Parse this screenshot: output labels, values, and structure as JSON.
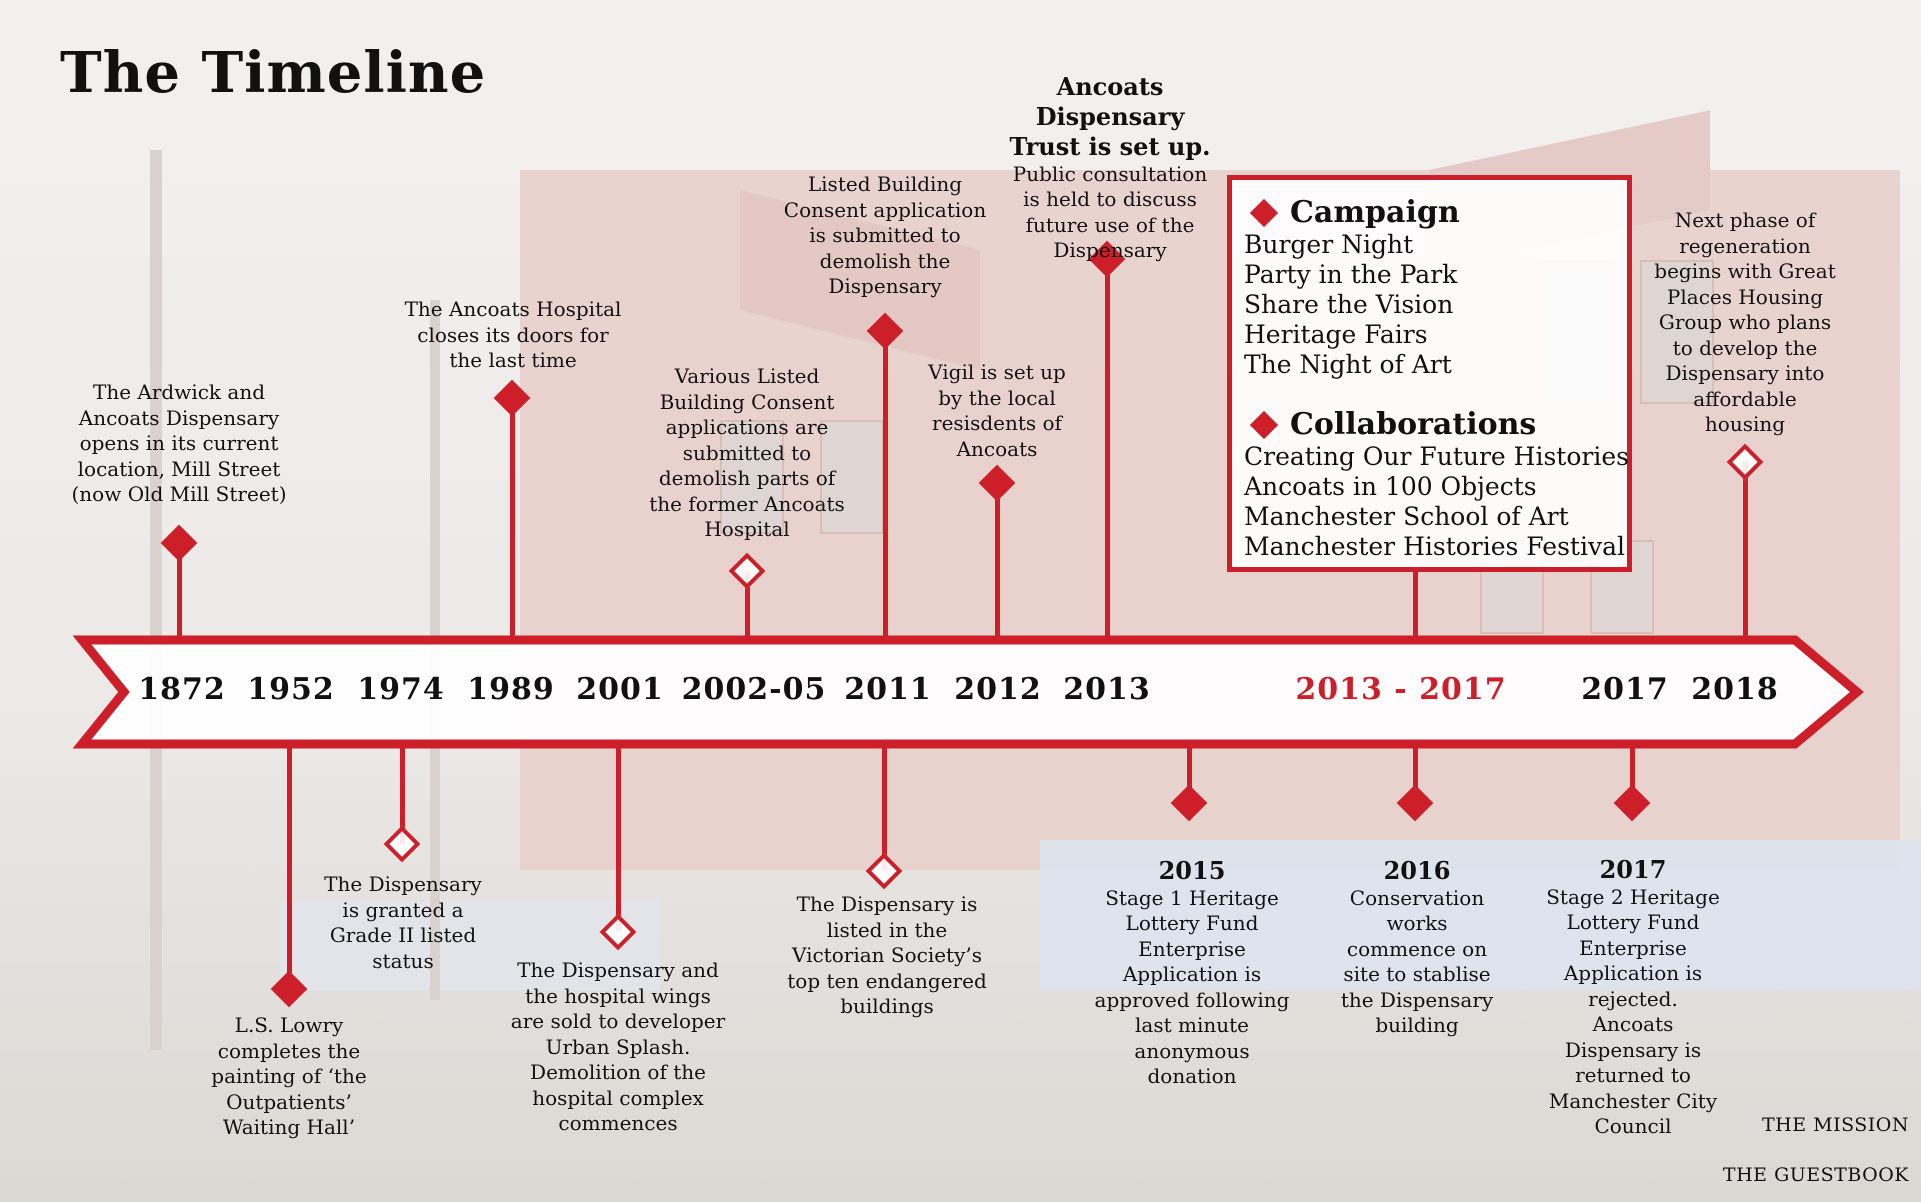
{
  "title": "The Timeline",
  "years": [
    "1872",
    "1952",
    "1974",
    "1989",
    "2001",
    "2002-05",
    "2011",
    "2012",
    "2013",
    "2013 - 2017",
    "2017",
    "2018"
  ],
  "events_above": [
    {
      "text": "The Ardwick and\nAncoats Dispensary\nopens in its current\nlocation, Mill Street\n(now Old Mill Street)"
    },
    {
      "text": "The Ancoats Hospital\ncloses its doors for\nthe last time"
    },
    {
      "text": "Various Listed\nBuilding Consent\napplications are\nsubmitted to\ndemolish parts of\nthe former Ancoats\nHospital"
    },
    {
      "text": "Listed Building\nConsent application\nis submitted to\ndemolish the\nDispensary"
    },
    {
      "text": "Vigil is set up\nby the local\nresisdents of\nAncoats"
    },
    {
      "heading": "Ancoats\nDispensary\nTrust is set up.",
      "text": "Public consultation\nis held to discuss\nfuture use of the\nDispensary"
    },
    {
      "text": "Next phase of\nregeneration\nbegins with Great\nPlaces Housing\nGroup who plans\nto develop the\nDispensary into\naffordable\nhousing"
    }
  ],
  "events_below": [
    {
      "text": "L.S. Lowry\ncompletes the\npainting of ‘the\nOutpatients’\nWaiting Hall’"
    },
    {
      "text": "The Dispensary\nis granted a\nGrade II listed\nstatus"
    },
    {
      "text": "The Dispensary and\nthe hospital wings\nare sold to developer\nUrban Splash.\nDemolition of the\nhospital complex\ncommences"
    },
    {
      "text": "The Dispensary is\nlisted in the\nVictorian Society’s\ntop ten endangered\nbuildings"
    },
    {
      "year": "2015",
      "text": "Stage 1 Heritage\nLottery Fund\nEnterprise\nApplication is\napproved following\nlast minute\nanonymous\ndonation"
    },
    {
      "year": "2016",
      "text": "Conservation\nworks\ncommence on\nsite to stablise\nthe Dispensary\nbuilding"
    },
    {
      "year": "2017",
      "text": "Stage 2 Heritage\nLottery Fund\nEnterprise\nApplication is\nrejected.\nAncoats\nDispensary is\nreturned to\nManchester City\nCouncil"
    }
  ],
  "campaign_box": {
    "campaign_title": "Campaign",
    "campaign_items": [
      "Burger Night",
      "Party in the Park",
      "Share the Vision",
      "Heritage Fairs",
      "The Night of Art"
    ],
    "collab_title": "Collaborations",
    "collab_items": [
      "Creating Our Future Histories",
      "Ancoats in 100 Objects",
      "Manchester School of Art",
      "Manchester Histories Festival"
    ]
  },
  "links": {
    "mission": "THE MISSION",
    "guestbook": "THE GUESTBOOK"
  },
  "colors": {
    "accent": "#cc1f2a",
    "text": "#111111"
  }
}
